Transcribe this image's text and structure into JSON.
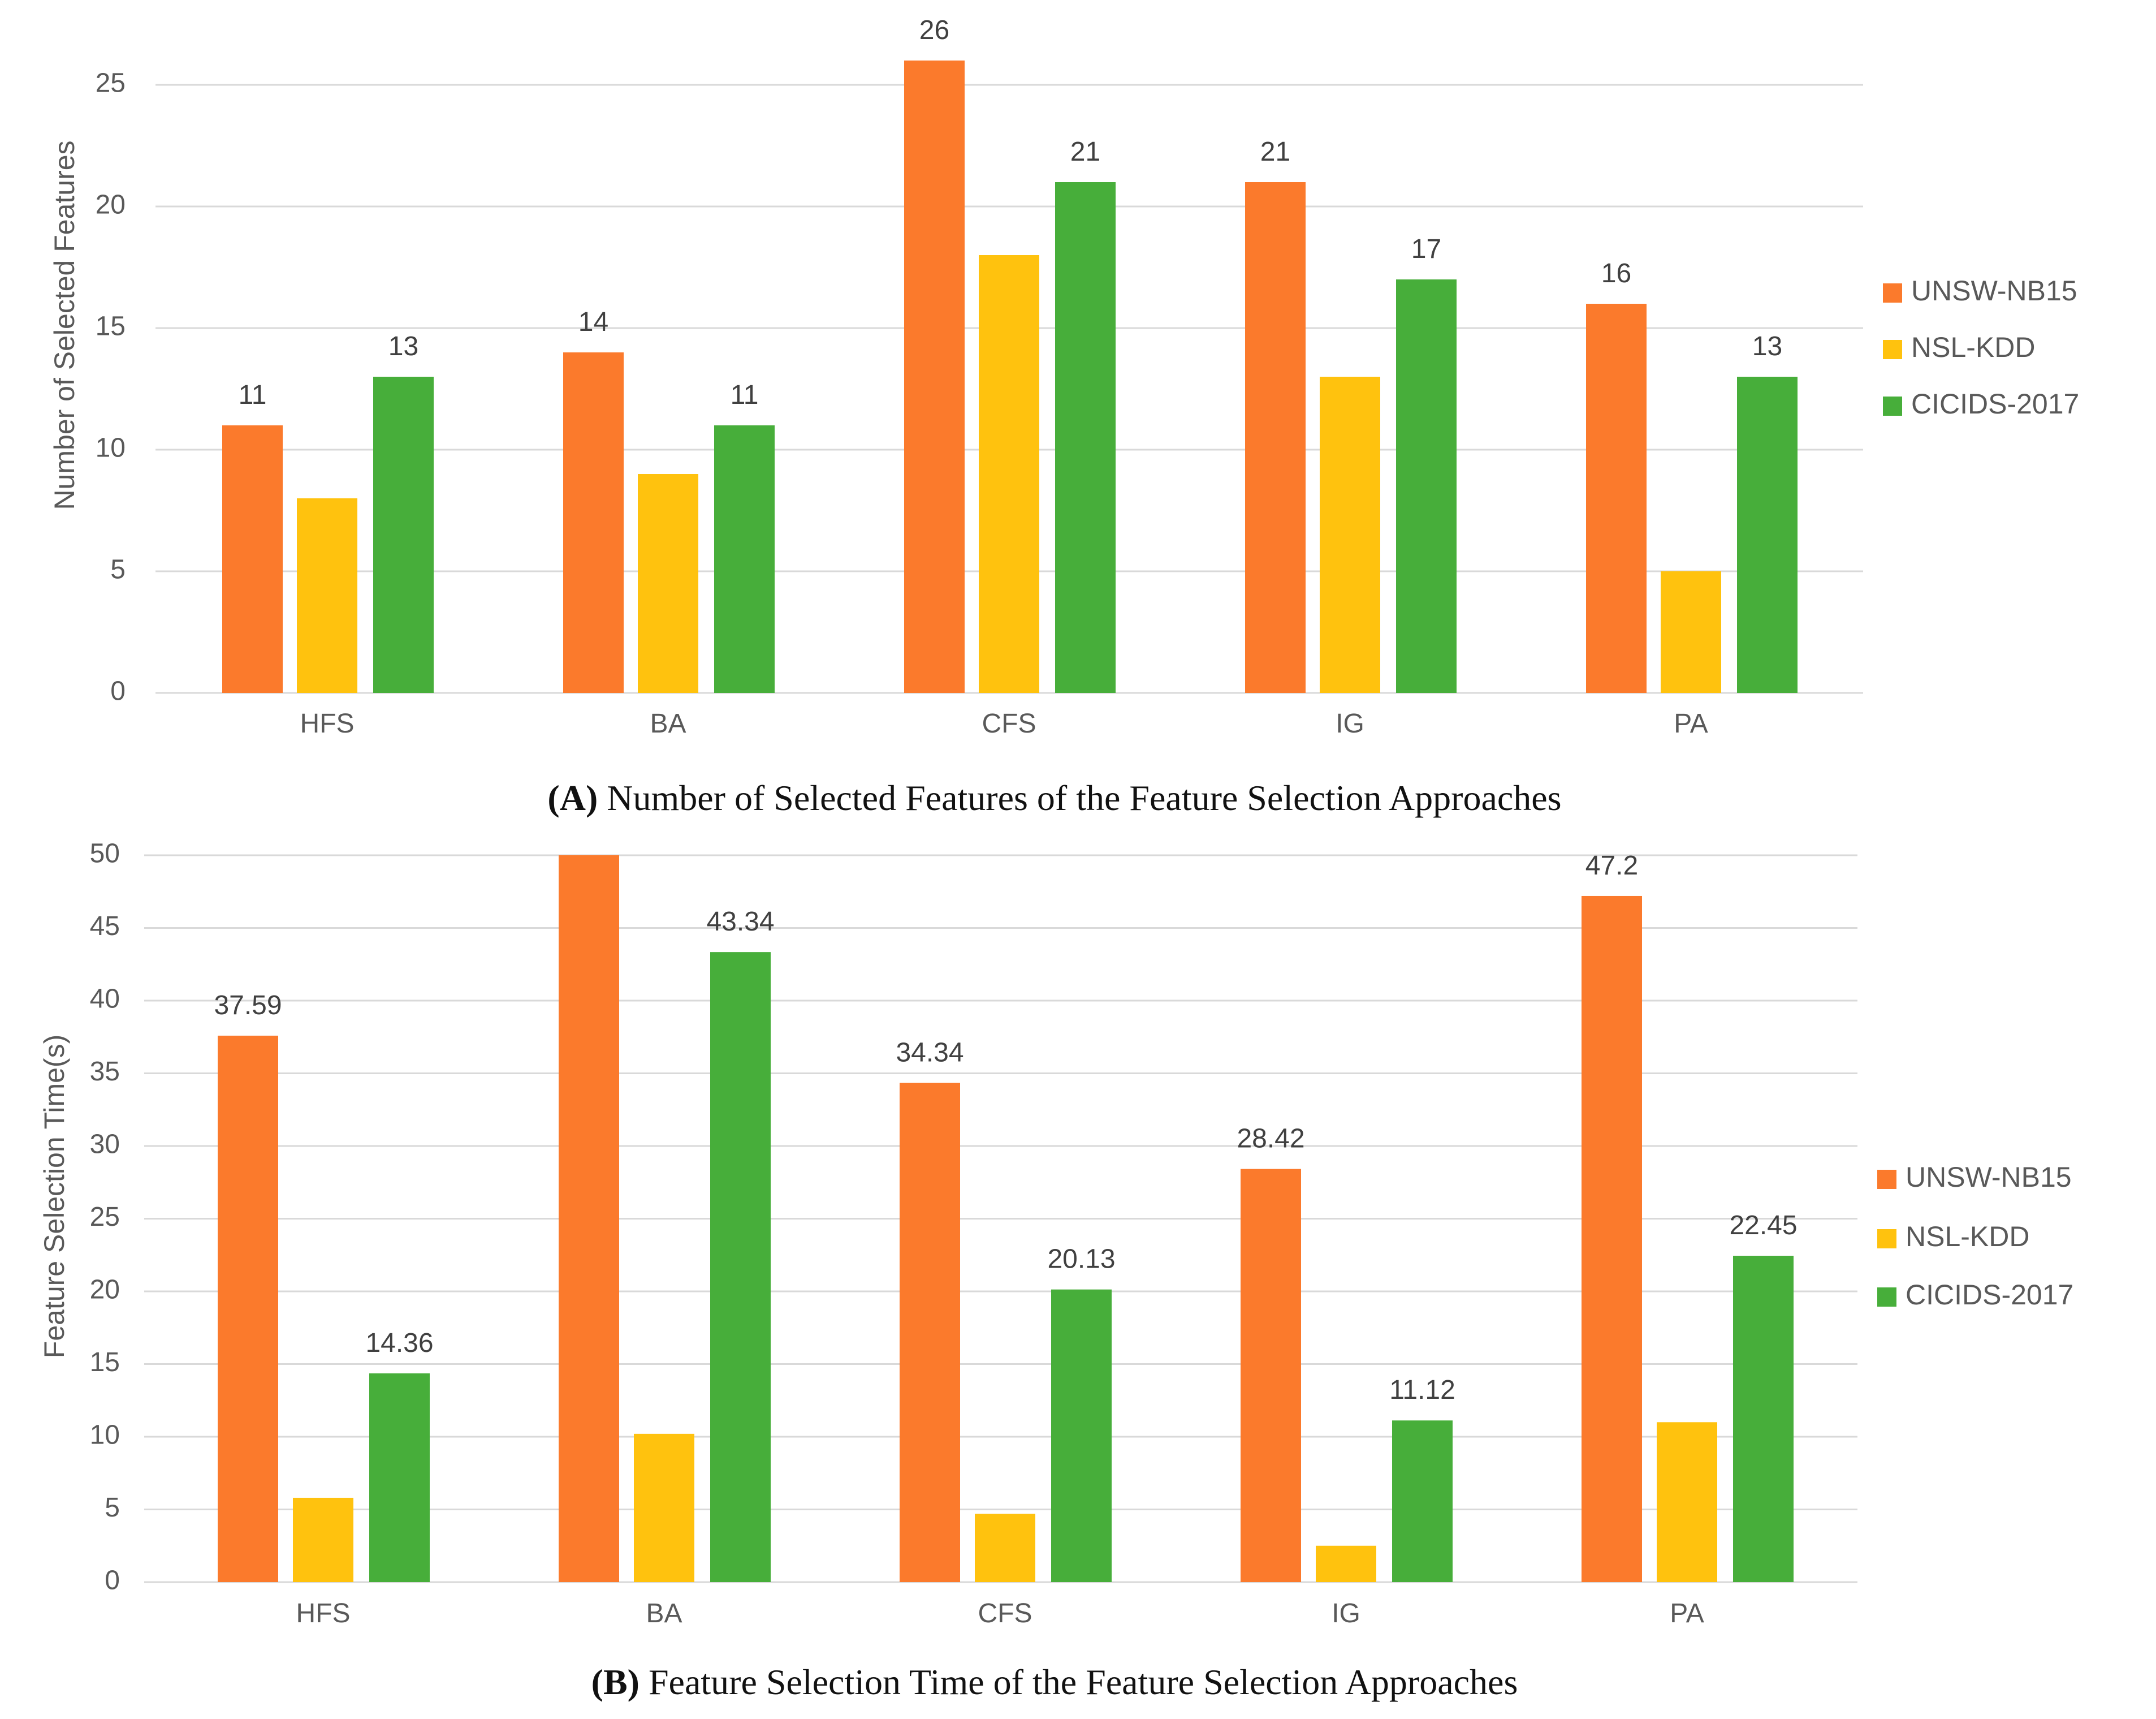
{
  "colors": {
    "UNSW-NB15": "#FB7A2C",
    "NSL-KDD": "#FFC20E",
    "CICIDS-2017": "#47AE3A",
    "grid": "#D9D9D9",
    "text": "#595959"
  },
  "chart_data": [
    {
      "type": "bar",
      "id": "A",
      "title": "Number of Selected Features of the Feature Selection Approaches",
      "caption_prefix": "(A)",
      "xlabel": "",
      "ylabel": "Number of Selected Features",
      "categories": [
        "HFS",
        "BA",
        "CFS",
        "IG",
        "PA"
      ],
      "ylim": [
        0,
        25
      ],
      "ystep": 5,
      "yticks": [
        "0",
        "5",
        "10",
        "15",
        "20",
        "25"
      ],
      "grid": true,
      "legend": "right",
      "series": [
        {
          "name": "UNSW-NB15",
          "values": [
            11,
            14,
            26,
            21,
            16
          ],
          "labels": [
            "11",
            "14",
            "26",
            "21",
            "16"
          ]
        },
        {
          "name": "NSL-KDD",
          "values": [
            8,
            9,
            18,
            13,
            5
          ],
          "labels": [
            null,
            null,
            null,
            null,
            null
          ]
        },
        {
          "name": "CICIDS-2017",
          "values": [
            13,
            11,
            21,
            17,
            13
          ],
          "labels": [
            "13",
            "11",
            "21",
            "17",
            "13"
          ]
        }
      ]
    },
    {
      "type": "bar",
      "id": "B",
      "title": "Feature Selection Time of the Feature Selection Approaches",
      "caption_prefix": "(B)",
      "xlabel": "",
      "ylabel": "Feature Selection Time(s)",
      "categories": [
        "HFS",
        "BA",
        "CFS",
        "IG",
        "PA"
      ],
      "ylim": [
        0,
        50
      ],
      "ystep": 5,
      "yticks": [
        "0",
        "5",
        "10",
        "15",
        "20",
        "25",
        "30",
        "35",
        "40",
        "45",
        "50"
      ],
      "grid": true,
      "legend": "right",
      "series": [
        {
          "name": "UNSW-NB15",
          "values": [
            37.59,
            50,
            34.34,
            28.42,
            47.2
          ],
          "labels": [
            "37.59",
            null,
            "34.34",
            "28.42",
            "47.2"
          ]
        },
        {
          "name": "NSL-KDD",
          "values": [
            5.8,
            10.2,
            4.7,
            2.5,
            11.0
          ],
          "labels": [
            null,
            null,
            null,
            null,
            null
          ]
        },
        {
          "name": "CICIDS-2017",
          "values": [
            14.36,
            43.34,
            20.13,
            11.12,
            22.45
          ],
          "labels": [
            "14.36",
            "43.34",
            "20.13",
            "11.12",
            "22.45"
          ]
        }
      ]
    }
  ]
}
